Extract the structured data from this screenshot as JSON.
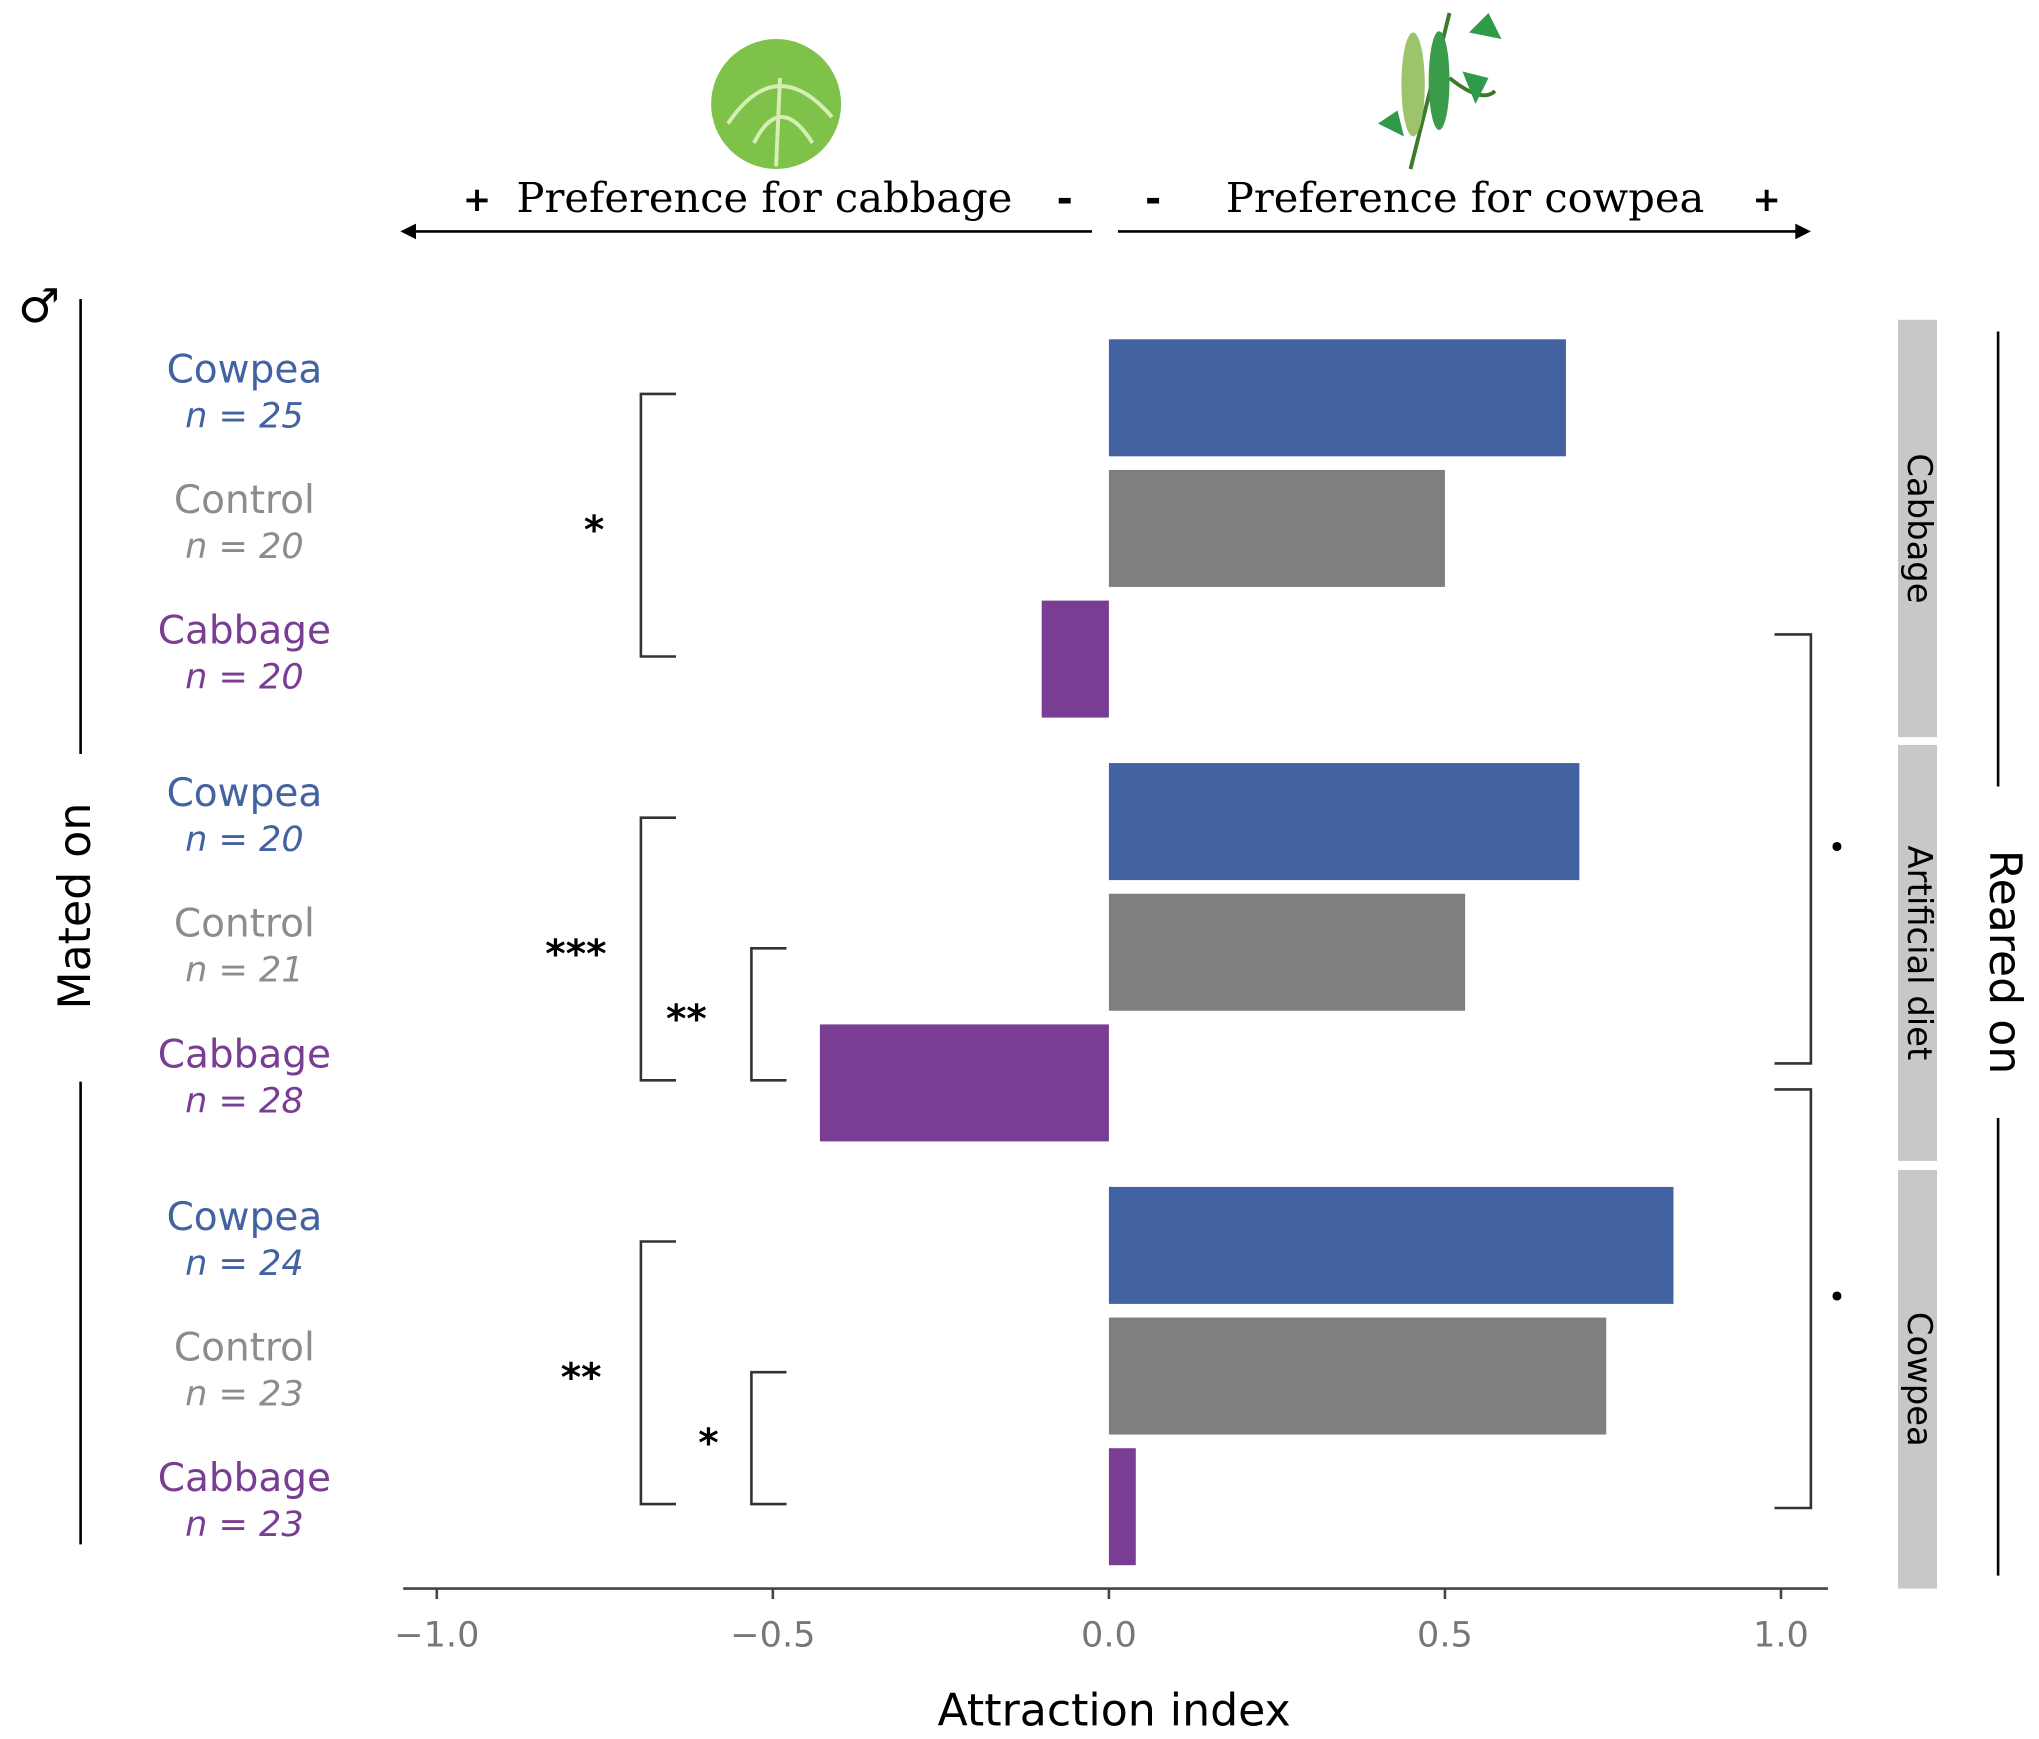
{
  "chart_data": {
    "type": "bar",
    "orientation": "horizontal",
    "x_label": "Attraction index",
    "left_label": "Mated on",
    "right_label": "Reared on",
    "sex_symbol": "♂",
    "header": {
      "left_plus": "+",
      "left_text": "Preference for cabbage",
      "left_minus": "-",
      "right_minus": "-",
      "right_text": "Preference for cowpea",
      "right_plus": "+"
    },
    "colors": [
      "#4262a2",
      "#7f7f7f",
      "#793e93"
    ],
    "label_colors": [
      "#4262a2",
      "#8c8c8c",
      "#793e93"
    ],
    "facets": [
      {
        "name": "Cabbage",
        "categories": [
          "Cowpea",
          "Control",
          "Cabbage"
        ],
        "n_labels": [
          "n = 25",
          "n = 20",
          "n = 20"
        ],
        "values": [
          0.68,
          0.5,
          -0.1
        ]
      },
      {
        "name": "Artificial diet",
        "categories": [
          "Cowpea",
          "Control",
          "Cabbage"
        ],
        "n_labels": [
          "n = 20",
          "n = 21",
          "n = 28"
        ],
        "values": [
          0.7,
          0.53,
          -0.43
        ]
      },
      {
        "name": "Cowpea",
        "categories": [
          "Cowpea",
          "Control",
          "Cabbage"
        ],
        "n_labels": [
          "n = 24",
          "n = 23",
          "n = 23"
        ],
        "values": [
          0.84,
          0.74,
          0.04
        ]
      }
    ],
    "significance": [
      "*",
      "***",
      "**",
      "**",
      "*"
    ],
    "trend_marks": [
      "•",
      "•"
    ],
    "xlim": [
      -1.05,
      1.07
    ],
    "xticks": [
      {
        "value": -1,
        "label": "−1.0"
      },
      {
        "value": -0.5,
        "label": "−0.5"
      },
      {
        "value": 0,
        "label": "0.0"
      },
      {
        "value": 0.5,
        "label": "0.5"
      },
      {
        "value": 1,
        "label": "1.0"
      }
    ]
  }
}
